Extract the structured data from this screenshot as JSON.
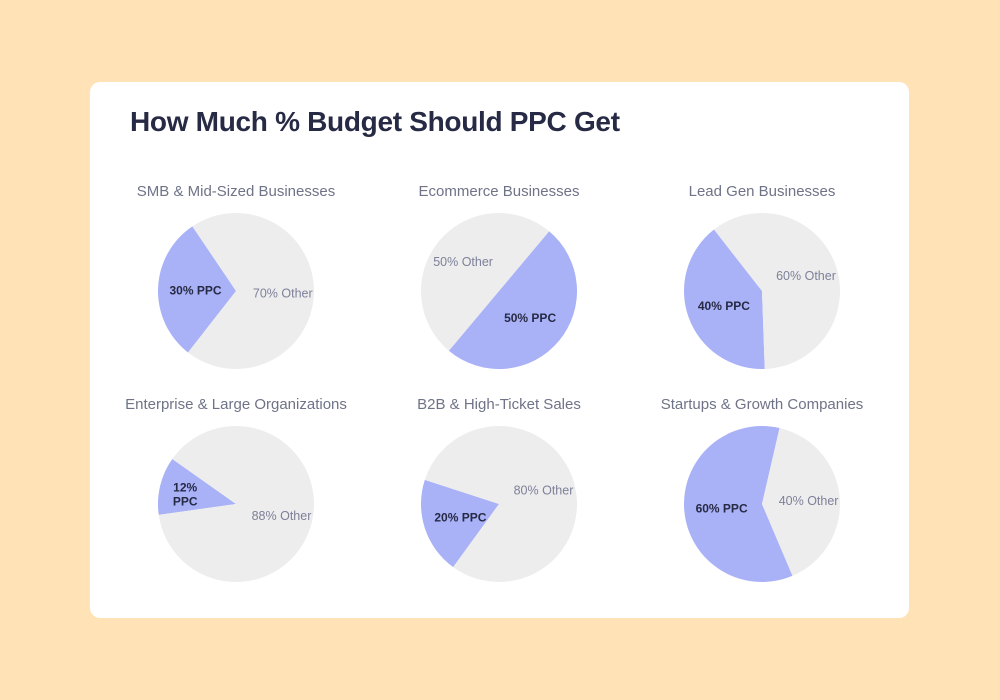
{
  "title": "How Much % Budget Should PPC Get",
  "colors": {
    "ppc": "#A9B1F7",
    "other": "#EDEDED",
    "ppc_label": "#262A44",
    "other_label": "#7D8199",
    "subtitle": "#6E7387"
  },
  "chart_data": [
    {
      "type": "pie",
      "title": "SMB & Mid-Sized Businesses",
      "slices": [
        {
          "name": "PPC",
          "value": 30,
          "label": "30% PPC"
        },
        {
          "name": "Other",
          "value": 70,
          "label": "70% Other"
        }
      ]
    },
    {
      "type": "pie",
      "title": "Ecommerce Businesses",
      "slices": [
        {
          "name": "PPC",
          "value": 50,
          "label": "50% PPC"
        },
        {
          "name": "Other",
          "value": 50,
          "label": "50% Other"
        }
      ]
    },
    {
      "type": "pie",
      "title": "Lead Gen Businesses",
      "slices": [
        {
          "name": "PPC",
          "value": 40,
          "label": "40% PPC"
        },
        {
          "name": "Other",
          "value": 60,
          "label": "60% Other"
        }
      ]
    },
    {
      "type": "pie",
      "title": "Enterprise & Large Organizations",
      "slices": [
        {
          "name": "PPC",
          "value": 12,
          "label": "12% PPC"
        },
        {
          "name": "Other",
          "value": 88,
          "label": "88% Other"
        }
      ]
    },
    {
      "type": "pie",
      "title": "B2B & High-Ticket Sales",
      "slices": [
        {
          "name": "PPC",
          "value": 20,
          "label": "20% PPC"
        },
        {
          "name": "Other",
          "value": 80,
          "label": "80% Other"
        }
      ]
    },
    {
      "type": "pie",
      "title": "Startups & Growth Companies",
      "slices": [
        {
          "name": "PPC",
          "value": 60,
          "label": "60% PPC"
        },
        {
          "name": "Other",
          "value": 40,
          "label": "40% Other"
        }
      ]
    }
  ]
}
